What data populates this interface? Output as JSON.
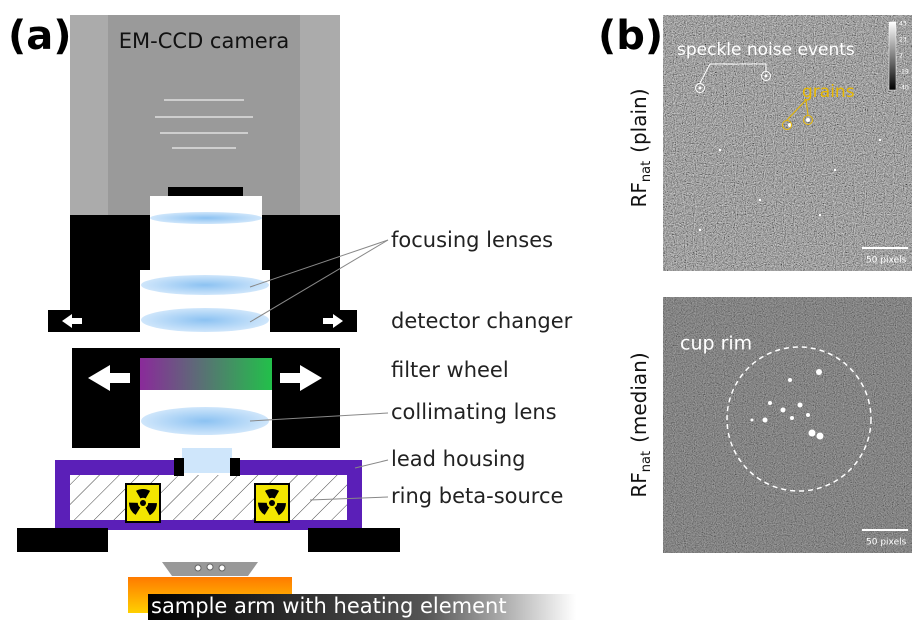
{
  "panel_a": {
    "label": "(a)",
    "camera": "EM-CCD camera",
    "labels": [
      "focusing lenses",
      "detector changer",
      "filter wheel",
      "collimating lens",
      "lead housing",
      "ring beta-source"
    ],
    "sample": "sample arm with heating element"
  },
  "panel_b": {
    "label": "(b)",
    "top_image": {
      "ylabel": {
        "base": "RF",
        "sub": "nat",
        "rest": "(plain)"
      },
      "annotations": [
        "speckle noise events",
        "grains"
      ],
      "scale_bar": "50 pixels",
      "colorbar_ticks": [
        43,
        23,
        2,
        -19,
        -40
      ]
    },
    "bottom_image": {
      "ylabel": {
        "base": "RF",
        "sub": "nat",
        "rest": "(median)"
      },
      "annotations": [
        "cup rim"
      ],
      "scale_bar": "50 pixels"
    }
  }
}
